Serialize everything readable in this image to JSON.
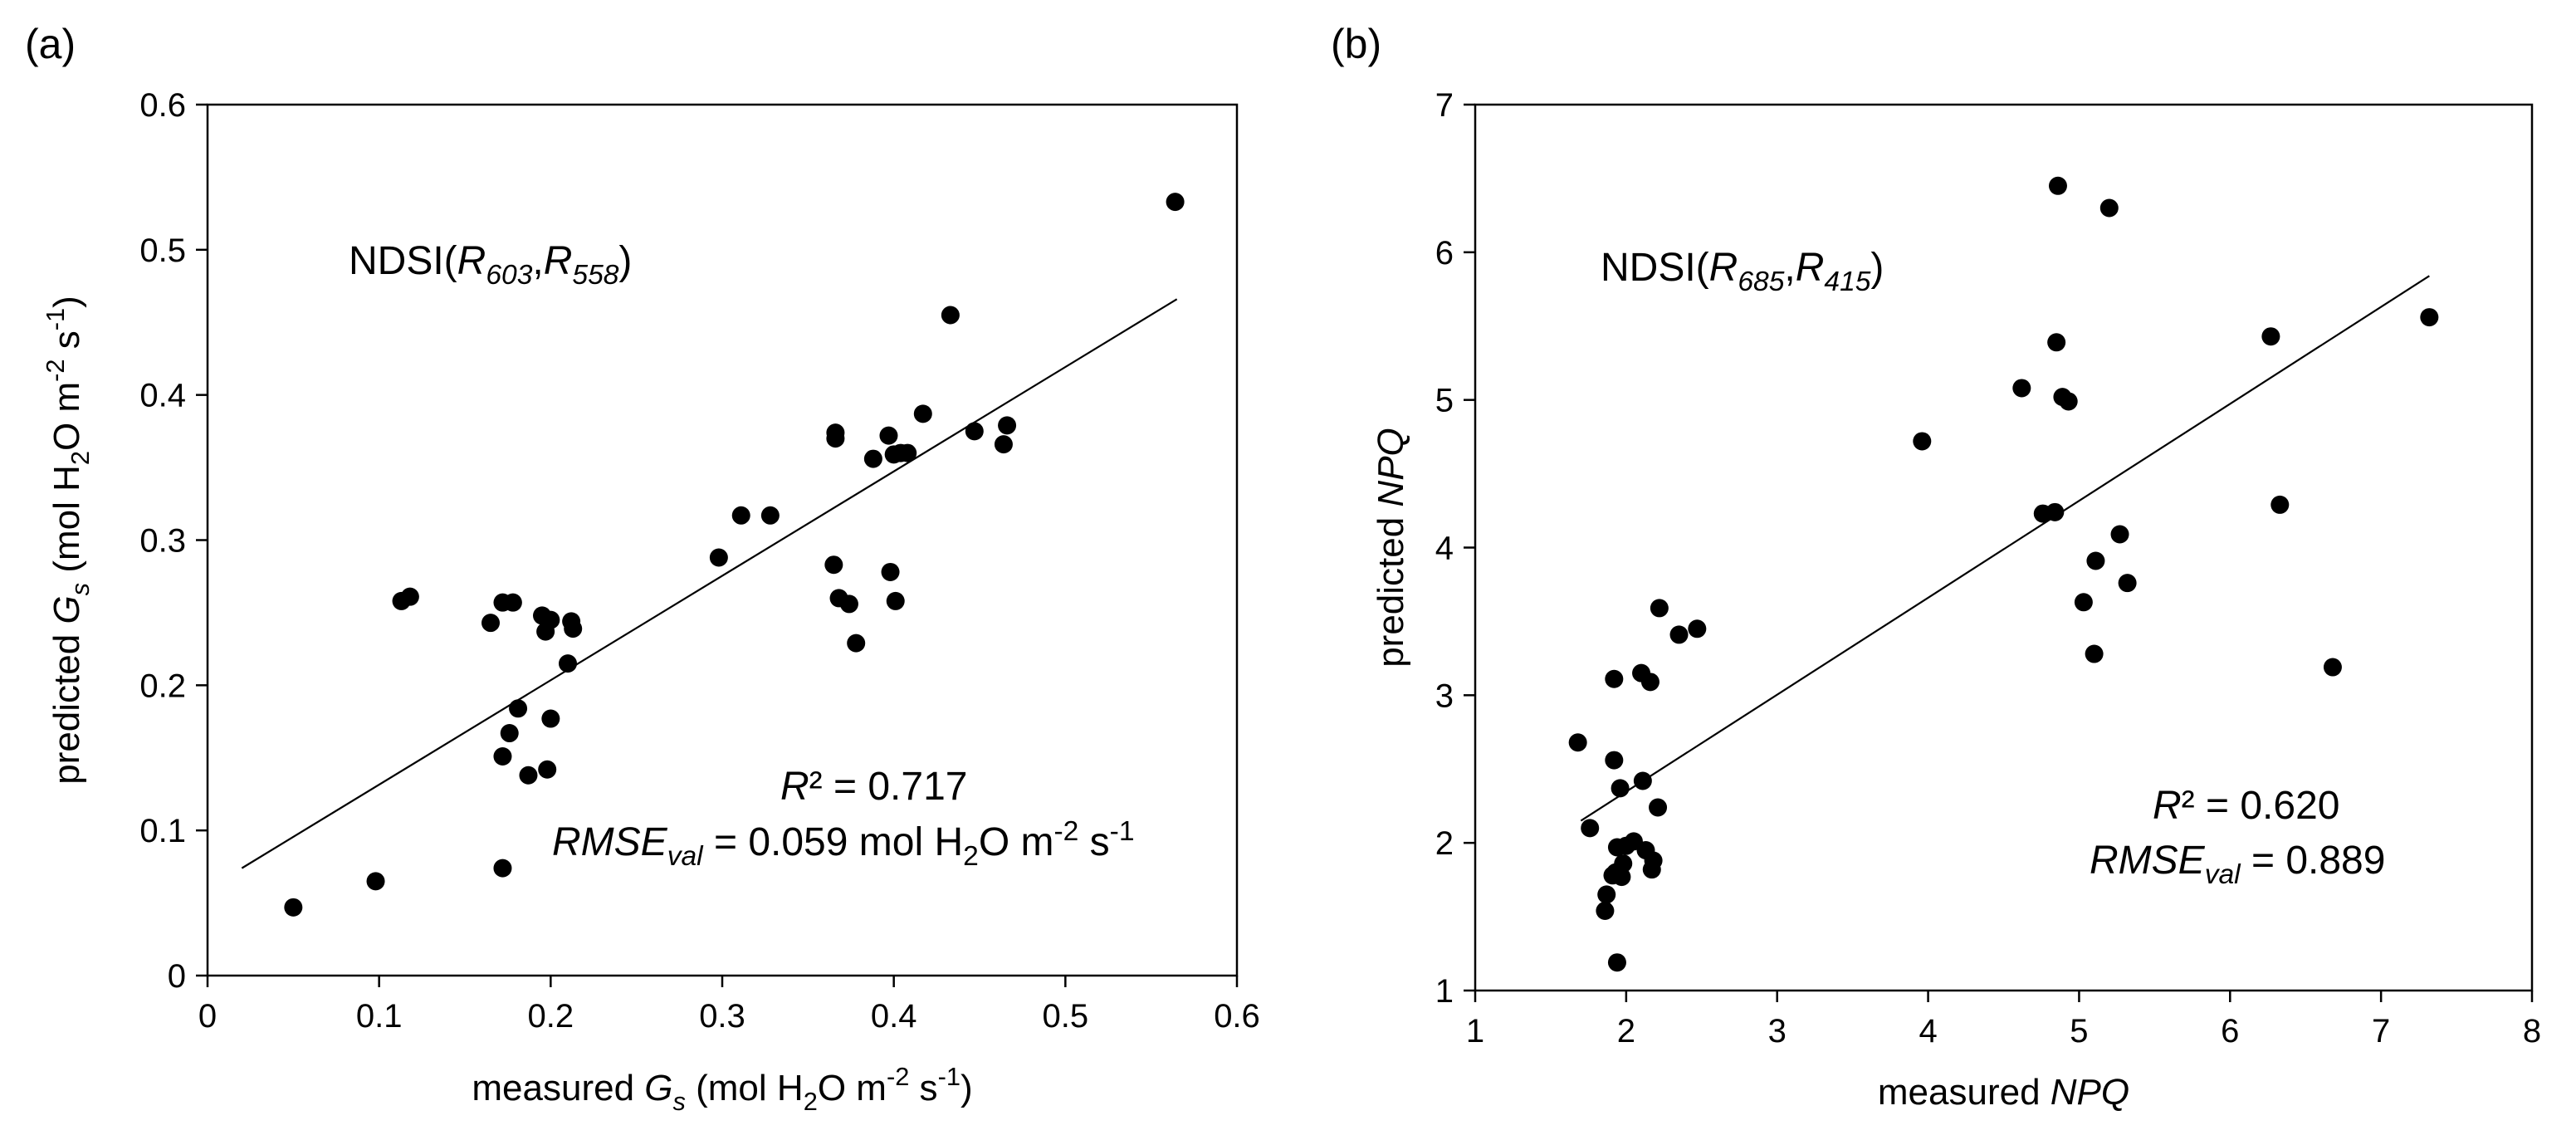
{
  "chart_data": [
    {
      "type": "scatter",
      "panel_label": "(a)",
      "xlabel": {
        "prefix": "measured ",
        "var": "G",
        "var_sub": "s",
        "unit_a": " (mol H",
        "unit_sub": "2",
        "unit_b": "O m",
        "sup1": "-2",
        "unit_c": " s",
        "sup2": "-1",
        "unit_d": ")"
      },
      "ylabel": {
        "prefix": "predicted ",
        "var": "G",
        "var_sub": "s",
        "unit_a": " (mol H",
        "unit_sub": "2",
        "unit_b": "O m",
        "sup1": "-2",
        "unit_c": " s",
        "sup2": "-1",
        "unit_d": ")"
      },
      "xlim": [
        0,
        0.6
      ],
      "ylim": [
        0,
        0.6
      ],
      "xticks": [
        "0",
        "0.1",
        "0.2",
        "0.3",
        "0.4",
        "0.5",
        "0.6"
      ],
      "yticks": [
        "0",
        "0.1",
        "0.2",
        "0.3",
        "0.4",
        "0.5",
        "0.6"
      ],
      "index_label": {
        "name": "NDSI(",
        "r1": "R",
        "r1_sub": "603",
        "comma": ",",
        "r2": "R",
        "r2_sub": "558",
        "close": ")"
      },
      "r2_text": {
        "label": "R",
        "rest": "² = 0.717"
      },
      "rmse_text": {
        "label": "RMSE",
        "label_sub": "val",
        "value_a": " = 0.059 mol H",
        "sub2": "2",
        "value_b": "O m",
        "sup1": "-2",
        "value_c": " s",
        "sup2": "-1"
      },
      "fit_line": {
        "x": [
          0.02,
          0.565
        ],
        "y": [
          0.074,
          0.466
        ]
      },
      "x": [
        0.05,
        0.098,
        0.113,
        0.118,
        0.165,
        0.172,
        0.172,
        0.172,
        0.176,
        0.178,
        0.181,
        0.187,
        0.195,
        0.197,
        0.198,
        0.2,
        0.2,
        0.21,
        0.212,
        0.213,
        0.298,
        0.311,
        0.328,
        0.365,
        0.366,
        0.366,
        0.368,
        0.374,
        0.378,
        0.388,
        0.397,
        0.398,
        0.4,
        0.401,
        0.404,
        0.408,
        0.417,
        0.433,
        0.447,
        0.464,
        0.466,
        0.564
      ],
      "y": [
        0.047,
        0.065,
        0.258,
        0.261,
        0.243,
        0.257,
        0.151,
        0.074,
        0.167,
        0.257,
        0.184,
        0.138,
        0.248,
        0.237,
        0.142,
        0.177,
        0.245,
        0.215,
        0.244,
        0.239,
        0.288,
        0.317,
        0.317,
        0.283,
        0.374,
        0.37,
        0.26,
        0.256,
        0.229,
        0.356,
        0.372,
        0.278,
        0.359,
        0.258,
        0.36,
        0.36,
        0.387,
        0.455,
        0.375,
        0.366,
        0.379,
        0.533
      ]
    },
    {
      "type": "scatter",
      "panel_label": "(b)",
      "xlabel": {
        "prefix": "measured ",
        "var": "NPQ"
      },
      "ylabel": {
        "prefix": "predicted ",
        "var": "NPQ"
      },
      "xlim": [
        1,
        8
      ],
      "ylim": [
        1,
        7
      ],
      "xticks": [
        "1",
        "2",
        "3",
        "4",
        "5",
        "6",
        "7",
        "8"
      ],
      "yticks": [
        "1",
        "2",
        "3",
        "4",
        "5",
        "6",
        "7"
      ],
      "index_label": {
        "name": "NDSI(",
        "r1": "R",
        "r1_sub": "685",
        "comma": ",",
        "r2": "R",
        "r2_sub": "415",
        "close": ")"
      },
      "r2_text": {
        "label": "R",
        "rest": "² = 0.620"
      },
      "rmse_text": {
        "label": "RMSE",
        "label_sub": "val",
        "value_a": " = 0.889"
      },
      "fit_line": {
        "x": [
          1.7,
          7.32
        ],
        "y": [
          2.15,
          5.84
        ]
      },
      "x": [
        1.68,
        1.76,
        1.86,
        1.87,
        1.91,
        1.92,
        1.92,
        1.93,
        1.94,
        1.94,
        1.96,
        1.97,
        1.98,
        2.0,
        2.05,
        2.1,
        2.11,
        2.13,
        2.16,
        2.17,
        2.18,
        2.21,
        2.22,
        2.35,
        2.47,
        3.96,
        4.62,
        4.76,
        4.84,
        4.85,
        4.86,
        4.89,
        4.93,
        5.03,
        5.1,
        5.11,
        5.2,
        5.27,
        5.32,
        6.27,
        6.33,
        6.68,
        7.32
      ],
      "y": [
        2.68,
        2.1,
        1.54,
        1.65,
        1.78,
        3.11,
        2.56,
        1.8,
        1.19,
        1.97,
        2.37,
        1.77,
        1.86,
        1.98,
        2.01,
        3.15,
        2.42,
        1.95,
        3.09,
        1.82,
        1.88,
        2.24,
        3.59,
        3.41,
        3.45,
        4.72,
        5.08,
        4.23,
        4.24,
        5.39,
        6.45,
        5.02,
        4.99,
        3.63,
        3.28,
        3.91,
        6.3,
        4.09,
        3.76,
        5.43,
        4.29,
        3.19,
        5.56
      ]
    }
  ]
}
